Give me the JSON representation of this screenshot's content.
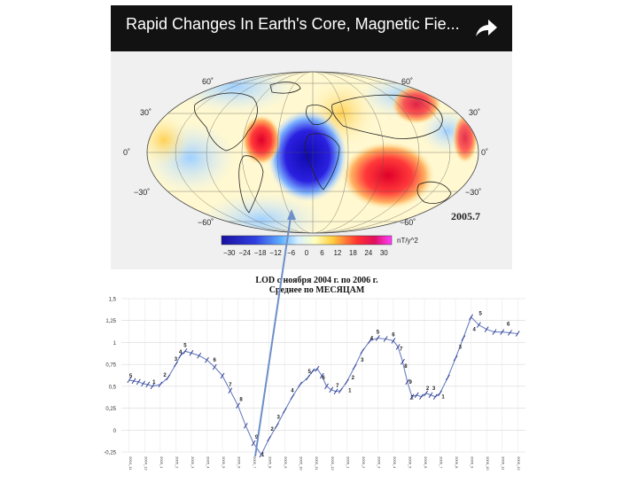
{
  "header": {
    "title": "Rapid Changes In Earth's Core, Magnetic Fie...",
    "share_icon": "share-arrow-icon"
  },
  "map": {
    "year_label": "2005.7",
    "lat_labels": [
      "60˚",
      "30˚",
      "0˚",
      "−30˚",
      "−60˚"
    ],
    "lat_labels_right": [
      "60˚",
      "30˚",
      "0˚",
      "−30˚",
      "−60˚"
    ],
    "colorbar": {
      "ticks": [
        "−30",
        "−24",
        "−18",
        "−12",
        "−6",
        "0",
        "6",
        "12",
        "18",
        "24",
        "30"
      ],
      "unit": "nT/y^2"
    }
  },
  "chart_data": {
    "type": "line",
    "title_line1": "LOD с ноября  2004 г. по 2006 г.",
    "title_line2": "Среднее по МЕСЯЦАМ",
    "y_ticks": [
      "1,5",
      "1,25",
      "1",
      "0,75",
      "0,5",
      "0,25",
      "0",
      "-0,25"
    ],
    "ylim": [
      -0.25,
      1.5
    ],
    "x_tick_labels": [
      "2004_11",
      "2004_12",
      "2005_1",
      "2005_2",
      "2005_3",
      "2005_4",
      "2005_5",
      "2005_6",
      "2005_7",
      "2005_8",
      "2005_9",
      "2005_10",
      "2005_11",
      "2005_12",
      "2006_1",
      "2006_2",
      "2006_3",
      "2006_4",
      "2006_5",
      "2006_6",
      "2006_7",
      "2006_8",
      "2006_9",
      "2006_10",
      "2006_11",
      "2006_12"
    ],
    "series": [
      {
        "x": [
          0,
          0.3,
          0.6,
          0.9,
          1.2,
          1.5,
          2,
          2.5,
          3,
          3.3,
          3.6,
          4,
          4.5,
          5,
          5.5,
          6,
          6.5,
          7,
          7.5,
          8,
          8.5,
          9,
          9.5,
          10,
          10.5,
          11,
          11.5,
          11.8,
          12.1,
          12.4,
          12.7,
          13,
          13.3,
          13.6,
          14,
          14.5,
          15,
          15.5,
          16,
          16.5,
          17,
          17.3,
          17.6,
          17.9,
          18.2,
          18.5,
          18.8,
          19.1,
          19.4,
          19.7,
          20,
          20.5,
          21,
          21.5,
          22,
          22.5,
          23,
          23.5,
          24,
          24.5,
          25
        ],
        "y": [
          0.57,
          0.56,
          0.55,
          0.53,
          0.52,
          0.5,
          0.52,
          0.6,
          0.75,
          0.85,
          0.9,
          0.88,
          0.85,
          0.8,
          0.72,
          0.62,
          0.45,
          0.28,
          0.05,
          -0.15,
          -0.28,
          -0.1,
          0.05,
          0.22,
          0.38,
          0.52,
          0.6,
          0.67,
          0.7,
          0.62,
          0.5,
          0.46,
          0.44,
          0.45,
          0.55,
          0.72,
          0.9,
          1.02,
          1.05,
          1.04,
          1.02,
          0.95,
          0.78,
          0.55,
          0.38,
          0.4,
          0.38,
          0.42,
          0.4,
          0.38,
          0.42,
          0.6,
          0.82,
          1.05,
          1.29,
          1.2,
          1.15,
          1.12,
          1.12,
          1.11,
          1.1
        ],
        "labels": [
          {
            "x": 0.1,
            "y": 0.57,
            "text": "5"
          },
          {
            "x": 1.6,
            "y": 0.5,
            "text": "1"
          },
          {
            "x": 2.3,
            "y": 0.58,
            "text": "2"
          },
          {
            "x": 3,
            "y": 0.76,
            "text": "3"
          },
          {
            "x": 3.3,
            "y": 0.84,
            "text": "4"
          },
          {
            "x": 3.6,
            "y": 0.92,
            "text": "5"
          },
          {
            "x": 5.5,
            "y": 0.75,
            "text": "6"
          },
          {
            "x": 6.5,
            "y": 0.47,
            "text": "7"
          },
          {
            "x": 7.2,
            "y": 0.3,
            "text": "8"
          },
          {
            "x": 8.2,
            "y": -0.13,
            "text": "9"
          },
          {
            "x": 8.6,
            "y": -0.33,
            "text": "1"
          },
          {
            "x": 9.2,
            "y": -0.04,
            "text": "2"
          },
          {
            "x": 9.6,
            "y": 0.1,
            "text": "3"
          },
          {
            "x": 10.5,
            "y": 0.4,
            "text": "4"
          },
          {
            "x": 11.6,
            "y": 0.62,
            "text": "5"
          },
          {
            "x": 12.5,
            "y": 0.55,
            "text": "6"
          },
          {
            "x": 13.4,
            "y": 0.46,
            "text": "7"
          },
          {
            "x": 14.2,
            "y": 0.4,
            "text": "1"
          },
          {
            "x": 14.4,
            "y": 0.55,
            "text": "2"
          },
          {
            "x": 15,
            "y": 0.75,
            "text": "3"
          },
          {
            "x": 15.6,
            "y": 1.0,
            "text": "4"
          },
          {
            "x": 16,
            "y": 1.07,
            "text": "5"
          },
          {
            "x": 17,
            "y": 1.04,
            "text": "6"
          },
          {
            "x": 17.5,
            "y": 0.88,
            "text": "7"
          },
          {
            "x": 17.8,
            "y": 0.68,
            "text": "8"
          },
          {
            "x": 18.1,
            "y": 0.5,
            "text": "9"
          },
          {
            "x": 18.2,
            "y": 0.32,
            "text": "1"
          },
          {
            "x": 19.2,
            "y": 0.43,
            "text": "2"
          },
          {
            "x": 19.6,
            "y": 0.43,
            "text": "3"
          },
          {
            "x": 20.2,
            "y": 0.33,
            "text": "1"
          },
          {
            "x": 21.3,
            "y": 0.9,
            "text": "3"
          },
          {
            "x": 22.2,
            "y": 1.1,
            "text": "4"
          },
          {
            "x": 22.6,
            "y": 1.28,
            "text": "5"
          },
          {
            "x": 24.4,
            "y": 1.16,
            "text": "6"
          }
        ]
      }
    ],
    "grid": true
  },
  "annotation": {
    "arrow_color": "#6e8fc8"
  }
}
